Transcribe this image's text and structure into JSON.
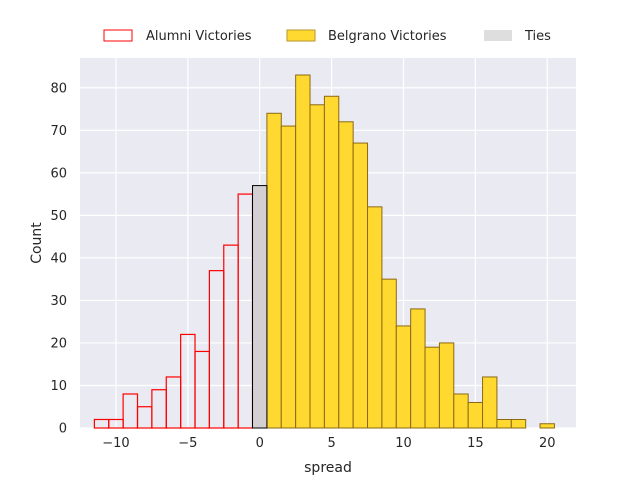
{
  "chart_data": {
    "type": "bar",
    "subtype": "histogram",
    "xlabel": "spread",
    "ylabel": "Count",
    "xlim": [
      -12.5,
      22
    ],
    "ylim": [
      0,
      87
    ],
    "xticks": [
      -10,
      -5,
      0,
      5,
      10,
      15,
      20
    ],
    "yticks": [
      0,
      10,
      20,
      30,
      40,
      50,
      60,
      70,
      80
    ],
    "tick_labels_x": [
      "−10",
      "−5",
      "0",
      "5",
      "10",
      "15",
      "20"
    ],
    "tick_labels_y": [
      "0",
      "10",
      "20",
      "30",
      "40",
      "50",
      "60",
      "70",
      "80"
    ],
    "bin_width": 1,
    "grid": true,
    "legend_position": "top",
    "series": [
      {
        "name": "Alumni Victories",
        "style": "outline",
        "color": "#ff0000",
        "bins": [
          {
            "x": -11,
            "count": 2
          },
          {
            "x": -10,
            "count": 2
          },
          {
            "x": -9,
            "count": 8
          },
          {
            "x": -8,
            "count": 5
          },
          {
            "x": -7,
            "count": 9
          },
          {
            "x": -6,
            "count": 12
          },
          {
            "x": -5,
            "count": 22
          },
          {
            "x": -4,
            "count": 18
          },
          {
            "x": -3,
            "count": 37
          },
          {
            "x": -2,
            "count": 43
          },
          {
            "x": -1,
            "count": 55
          }
        ]
      },
      {
        "name": "Belgrano Victories",
        "style": "filled",
        "color": "#ffd92f",
        "edge_color": "#8b6914",
        "bins": [
          {
            "x": 1,
            "count": 74
          },
          {
            "x": 2,
            "count": 71
          },
          {
            "x": 3,
            "count": 83
          },
          {
            "x": 4,
            "count": 76
          },
          {
            "x": 5,
            "count": 78
          },
          {
            "x": 6,
            "count": 72
          },
          {
            "x": 7,
            "count": 67
          },
          {
            "x": 8,
            "count": 52
          },
          {
            "x": 9,
            "count": 35
          },
          {
            "x": 10,
            "count": 24
          },
          {
            "x": 11,
            "count": 28
          },
          {
            "x": 12,
            "count": 19
          },
          {
            "x": 13,
            "count": 20
          },
          {
            "x": 14,
            "count": 8
          },
          {
            "x": 15,
            "count": 6
          },
          {
            "x": 16,
            "count": 12
          },
          {
            "x": 17,
            "count": 2
          },
          {
            "x": 18,
            "count": 2
          },
          {
            "x": 20,
            "count": 1
          }
        ]
      },
      {
        "name": "Ties",
        "style": "filled",
        "color": "#d3cfd3",
        "edge_color": "#000000",
        "bins": [
          {
            "x": 0,
            "count": 57
          }
        ]
      }
    ],
    "legend": [
      {
        "label": "Alumni Victories",
        "style": "outline",
        "color": "#ff0000"
      },
      {
        "label": "Belgrano Victories",
        "style": "filled",
        "color": "#ffd92f"
      },
      {
        "label": "Ties",
        "style": "filled",
        "color": "#dedede"
      }
    ],
    "colors": {
      "plot_background": "#eaeaf2",
      "grid": "#ffffff"
    }
  }
}
